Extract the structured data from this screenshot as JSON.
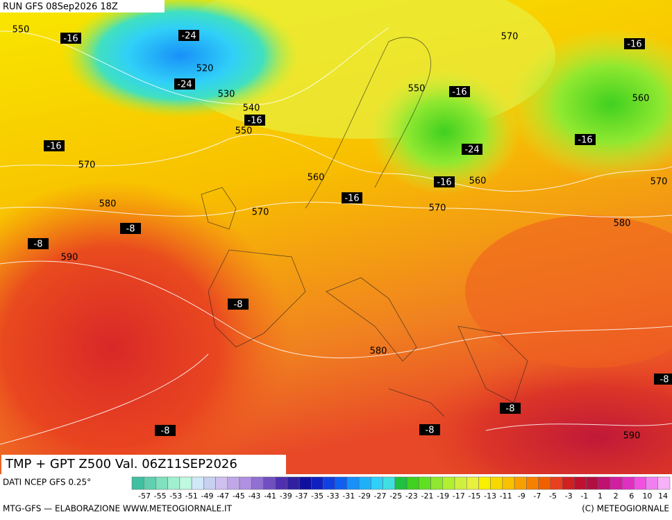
{
  "header": {
    "run": "RUN GFS 08Sep2026 18Z"
  },
  "map_labels": [
    "550",
    "-16",
    "-24",
    "520",
    "-24",
    "530",
    "540",
    "-16",
    "550",
    "-16",
    "570",
    "580",
    "-8",
    "-8",
    "590",
    "570",
    "560",
    "-16",
    "550",
    "-16",
    "-24",
    "-16",
    "560",
    "570",
    "570",
    "-16",
    "560",
    "-16",
    "570",
    "580",
    "-8",
    "580",
    "-8",
    "-8",
    "-8",
    "-8",
    "590"
  ],
  "footer": {
    "title": "TMP + GPT Z500 Val. 06Z11SEP2026",
    "source": "DATI NCEP GFS 0.25°",
    "credit": "MTG-GFS — ELABORAZIONE WWW.METEOGIORNALE.IT",
    "copyright": "(C) METEOGIORNALE"
  },
  "legend": {
    "labels": [
      "-57",
      "-55",
      "-53",
      "-51",
      "-49",
      "-47",
      "-45",
      "-43",
      "-41",
      "-39",
      "-37",
      "-35",
      "-33",
      "-31",
      "-29",
      "-27",
      "-25",
      "-23",
      "-21",
      "-19",
      "-17",
      "-15",
      "-13",
      "-11",
      "-9",
      "-7",
      "-5",
      "-3",
      "-1",
      "1",
      "2",
      "6",
      "10",
      "14"
    ],
    "colors": [
      "#40c0a0",
      "#60d0b0",
      "#80e0c0",
      "#a0f0d0",
      "#c0f8e0",
      "#d0e8f8",
      "#c8d0f0",
      "#d0c0f0",
      "#c0a8e8",
      "#b090e0",
      "#9070d0",
      "#7050c0",
      "#5030b0",
      "#3020a0",
      "#1010a0",
      "#1020c0",
      "#1040e0",
      "#1060f0",
      "#1890f8",
      "#20b0f8",
      "#30d0f8",
      "#40e0e0",
      "#20c040",
      "#40d020",
      "#60e020",
      "#90e830",
      "#b0f030",
      "#d0f040",
      "#e8f040",
      "#f8f000",
      "#f8d800",
      "#f8c000",
      "#f8a000",
      "#f88000",
      "#f06000",
      "#e84020",
      "#d02020",
      "#c01030",
      "#b01040",
      "#c01070",
      "#d020a0",
      "#e030c0",
      "#f050e0",
      "#f080f0",
      "#f8b0f8"
    ]
  }
}
